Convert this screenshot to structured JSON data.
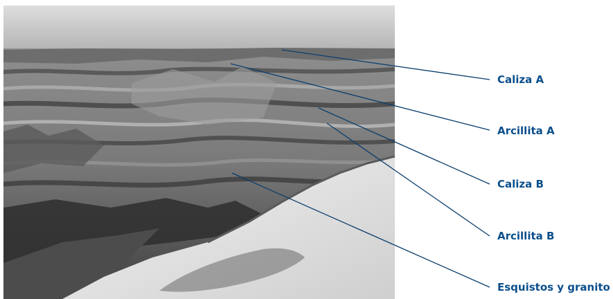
{
  "colors": {
    "label_text": "#0b4f8c",
    "leader_line": "#0b3e6e",
    "sky_top": "#dcdcdc",
    "sky_horizon": "#b8b8b8",
    "canyon_light": "#9a9a9a",
    "canyon_dark": "#3a3a3a",
    "foreground_rock": "#e6e6e6"
  },
  "photo": {
    "subject": "grand-canyon-grayscale-photo"
  },
  "labels": [
    {
      "id": "caliza-a",
      "text": "Caliza A"
    },
    {
      "id": "arcillita-a",
      "text": "Arcillita A"
    },
    {
      "id": "caliza-b",
      "text": "Caliza B"
    },
    {
      "id": "arcillita-b",
      "text": "Arcillita B"
    },
    {
      "id": "esquistos-granito",
      "text": "Esquistos y granito"
    }
  ]
}
